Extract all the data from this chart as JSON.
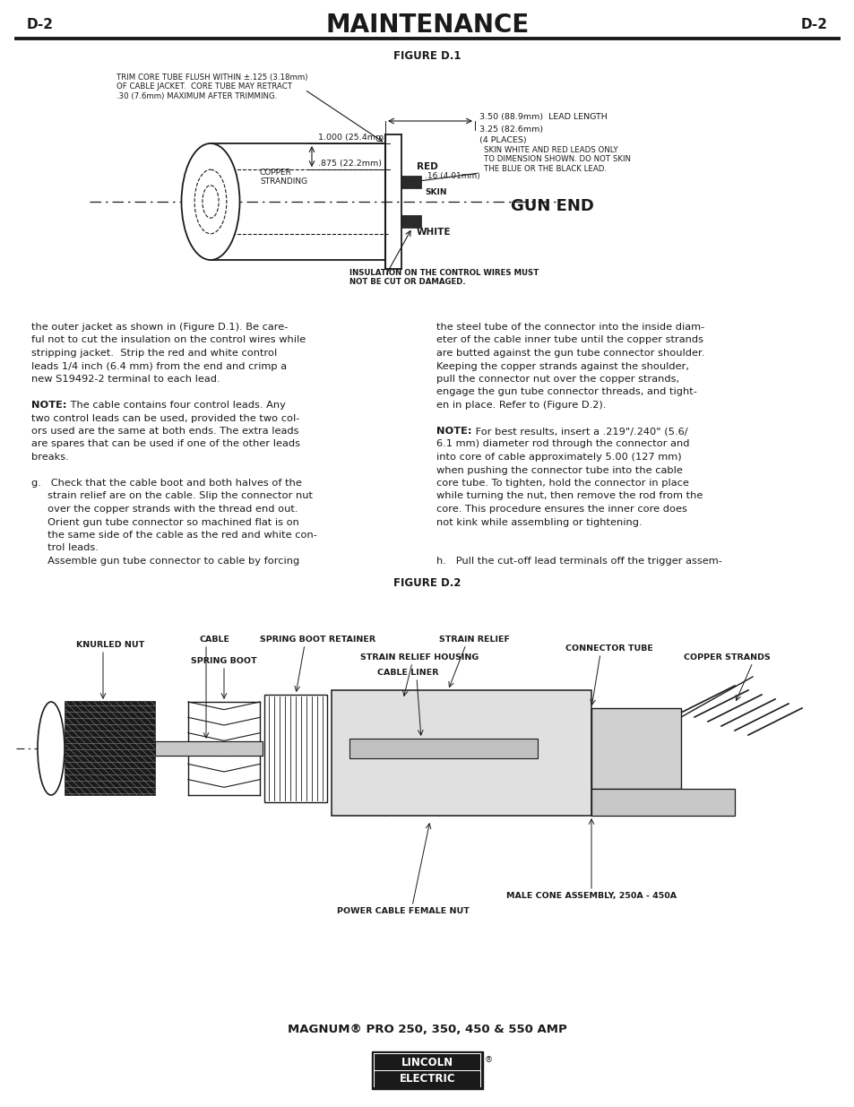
{
  "page_width": 9.54,
  "page_height": 12.35,
  "dpi": 100,
  "background_color": "#ffffff",
  "header_left": "D-2",
  "header_center": "MAINTENANCE",
  "header_right": "D-2",
  "figure1_title": "FIGURE D.1",
  "figure2_title": "FIGURE D.2",
  "gun_end_label": "GUN END",
  "footer_model": "MAGNUM® PRO 250, 350, 450 & 550 AMP",
  "body_text_left": [
    "the outer jacket as shown in (Figure D.1). Be care-",
    "ful not to cut the insulation on the control wires while",
    "stripping jacket.  Strip the red and white control",
    "leads 1/4 inch (6.4 mm) from the end and crimp a",
    "new S19492-2 terminal to each lead.",
    "",
    "NOTE: The cable contains four control leads. Any",
    "two control leads can be used, provided the two col-",
    "ors used are the same at both ends. The extra leads",
    "are spares that can be used if one of the other leads",
    "breaks.",
    "",
    "g.   Check that the cable boot and both halves of the",
    "     strain relief are on the cable. Slip the connector nut",
    "     over the copper strands with the thread end out.",
    "     Orient gun tube connector so machined flat is on",
    "     the same side of the cable as the red and white con-",
    "     trol leads.",
    "     Assemble gun tube connector to cable by forcing"
  ],
  "body_text_right": [
    "the steel tube of the connector into the inside diam-",
    "eter of the cable inner tube until the copper strands",
    "are butted against the gun tube connector shoulder.",
    "Keeping the copper strands against the shoulder,",
    "pull the connector nut over the copper strands,",
    "engage the gun tube connector threads, and tight-",
    "en in place. Refer to (Figure D.2).",
    "",
    "NOTE: For best results, insert a .219\"/.240\" (5.6/",
    "6.1 mm) diameter rod through the connector and",
    "into core of cable approximately 5.00 (127 mm)",
    "when pushing the connector tube into the cable",
    "core tube. To tighten, hold the connector in place",
    "while turning the nut, then remove the rod from the",
    "core. This procedure ensures the inner core does",
    "not kink while assembling or tightening.",
    "",
    "",
    "h.   Pull the cut-off lead terminals off the trigger assem-"
  ],
  "fig1_trim_note": "TRIM CORE TUBE FLUSH WITHIN ±.125 (3.18mm)\nOF CABLE JACKET.  CORE TUBE MAY RETRACT\n.30 (7.6mm) MAXIMUM AFTER TRIMMING.",
  "fig1_dim1": "1.000 (25.4mm)",
  "fig1_dim2": ".875 (22.2mm)",
  "fig1_copper": "COPPER\nSTRANDING",
  "fig1_lead_length": "3.50 (88.9mm)",
  "fig1_lead_length2": "3.25 (82.6mm)",
  "fig1_lead_length3": "(4 PLACES)",
  "fig1_lead_length_label": "LEAD LENGTH",
  "fig1_skin_note": "SKIN WHITE AND RED LEADS ONLY\nTO DIMENSION SHOWN. DO NOT SKIN\nTHE BLUE OR THE BLACK LEAD.",
  "fig1_skin_dim": ".16 (4.01mm)",
  "fig1_skin_label": "SKIN",
  "fig1_red": "RED",
  "fig1_white": "WHITE",
  "fig1_insulation": "INSULATION ON THE CONTROL WIRES MUST\nNOT BE CUT OR DAMAGED.",
  "fig1_gun_end": "GUN END",
  "fig2_knurled_nut": "KNURLED NUT",
  "fig2_cable": "CABLE",
  "fig2_spring_boot_retainer": "SPRING BOOT RETAINER",
  "fig2_strain_relief": "STRAIN RELIEF",
  "fig2_spring_boot": "SPRING BOOT",
  "fig2_strain_relief_housing": "STRAIN RELIEF HOUSING",
  "fig2_connector_tube": "CONNECTOR TUBE",
  "fig2_cable_liner": "CABLE LINER",
  "fig2_copper_strands": "COPPER STRANDS",
  "fig2_male_cone": "MALE CONE ASSEMBLY, 250A - 450A",
  "fig2_power_cable": "POWER CABLE FEMALE NUT"
}
